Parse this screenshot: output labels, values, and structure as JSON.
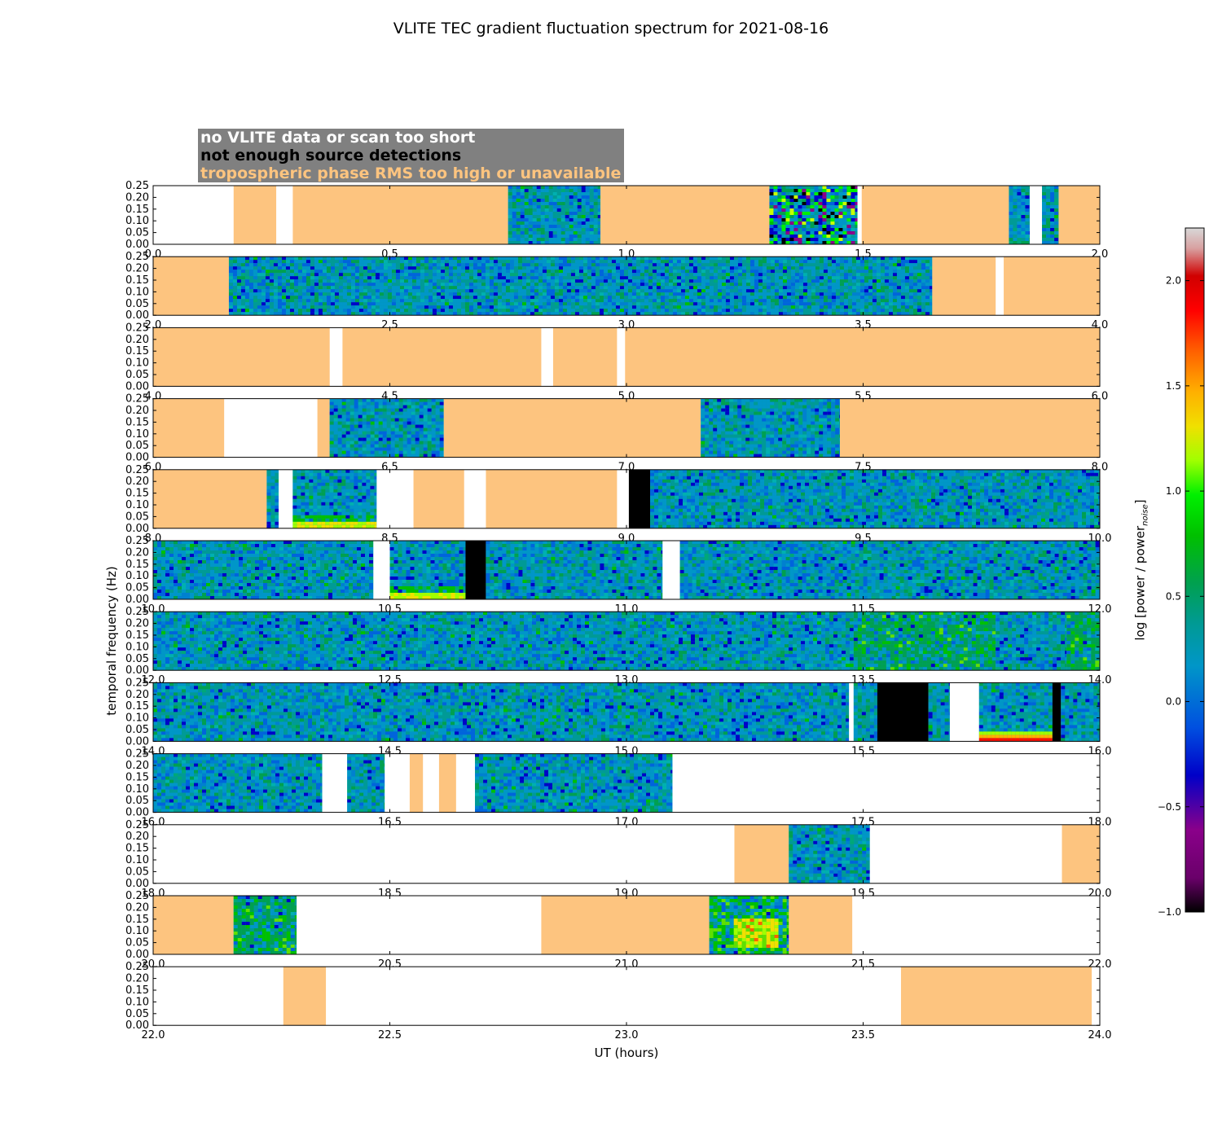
{
  "title": "VLITE TEC gradient fluctuation spectrum for 2021-08-16",
  "legend": {
    "no_data": "no VLITE data or scan too short",
    "no_detections": "not enough source detections",
    "tropo": "tropospheric phase RMS too high or unavailable"
  },
  "colors": {
    "no_data": "#ffffff",
    "no_detections": "#000000",
    "tropo": "#fdc47f"
  },
  "colorbar": {
    "label": "log [power / power",
    "label_sub": "noise",
    "label_end": "]",
    "range": [
      -1.0,
      2.25
    ],
    "ticks": [
      "−1.0",
      "−0.5",
      "0.0",
      "0.5",
      "1.0",
      "1.5",
      "2.0"
    ],
    "tick_values": [
      -1.0,
      -0.5,
      0.0,
      0.5,
      1.0,
      1.5,
      2.0
    ]
  },
  "chart_data": {
    "type": "heatmap",
    "title": "VLITE TEC gradient fluctuation spectrum for 2021-08-16",
    "xlabel": "UT (hours)",
    "ylabel": "temporal frequency (Hz)",
    "ylim": [
      0,
      0.25
    ],
    "yticks": [
      "0.00",
      "0.05",
      "0.10",
      "0.15",
      "0.20",
      "0.25"
    ],
    "panels": [
      {
        "xlim": [
          0,
          2
        ],
        "xticks": [
          "0.0",
          "0.5",
          "1.0",
          "1.5",
          "2.0"
        ],
        "segments": [
          [
            0,
            0.17,
            "none"
          ],
          [
            0.17,
            0.26,
            "tropo"
          ],
          [
            0.26,
            0.295,
            "none"
          ],
          [
            0.295,
            0.75,
            "tropo"
          ],
          [
            0.75,
            0.945,
            "data"
          ],
          [
            0.945,
            1.302,
            "tropo"
          ],
          [
            1.302,
            1.488,
            "data-active"
          ],
          [
            1.488,
            1.497,
            "none"
          ],
          [
            1.497,
            1.808,
            "tropo"
          ],
          [
            1.808,
            1.852,
            "data"
          ],
          [
            1.852,
            1.878,
            "none"
          ],
          [
            1.878,
            1.913,
            "data"
          ],
          [
            1.913,
            2.0,
            "tropo"
          ]
        ]
      },
      {
        "xlim": [
          2,
          4
        ],
        "xticks": [
          "2.0",
          "2.5",
          "3.0",
          "3.5",
          "4.0"
        ],
        "segments": [
          [
            2.0,
            2.16,
            "tropo"
          ],
          [
            2.16,
            3.646,
            "data"
          ],
          [
            3.646,
            3.78,
            "tropo"
          ],
          [
            3.78,
            3.797,
            "none"
          ],
          [
            3.797,
            4.0,
            "tropo"
          ]
        ]
      },
      {
        "xlim": [
          4,
          6
        ],
        "xticks": [
          "4.0",
          "4.5",
          "5.0",
          "5.5",
          "6.0"
        ],
        "segments": [
          [
            4.0,
            4.373,
            "tropo"
          ],
          [
            4.373,
            4.4,
            "none"
          ],
          [
            4.4,
            4.82,
            "tropo"
          ],
          [
            4.82,
            4.845,
            "none"
          ],
          [
            4.845,
            4.98,
            "tropo"
          ],
          [
            4.98,
            4.997,
            "none"
          ],
          [
            4.997,
            6.0,
            "tropo"
          ]
        ]
      },
      {
        "xlim": [
          6,
          8
        ],
        "xticks": [
          "6.0",
          "6.5",
          "7.0",
          "7.5",
          "8.0"
        ],
        "segments": [
          [
            6.0,
            6.15,
            "tropo"
          ],
          [
            6.15,
            6.347,
            "none"
          ],
          [
            6.347,
            6.373,
            "tropo"
          ],
          [
            6.373,
            6.614,
            "data"
          ],
          [
            6.614,
            7.157,
            "tropo"
          ],
          [
            7.157,
            7.451,
            "data"
          ],
          [
            7.451,
            8.0,
            "tropo"
          ]
        ]
      },
      {
        "xlim": [
          8,
          10
        ],
        "xticks": [
          "8.0",
          "8.5",
          "9.0",
          "9.5",
          "10.0"
        ],
        "segments": [
          [
            8.0,
            8.24,
            "tropo"
          ],
          [
            8.24,
            8.265,
            "data"
          ],
          [
            8.265,
            8.295,
            "none"
          ],
          [
            8.295,
            8.472,
            "data-low"
          ],
          [
            8.472,
            8.55,
            "none"
          ],
          [
            8.55,
            8.657,
            "tropo"
          ],
          [
            8.657,
            8.703,
            "none"
          ],
          [
            8.703,
            8.98,
            "tropo"
          ],
          [
            8.98,
            9.005,
            "none"
          ],
          [
            9.005,
            9.05,
            "black"
          ],
          [
            9.05,
            10.0,
            "data"
          ]
        ]
      },
      {
        "xlim": [
          10,
          12
        ],
        "xticks": [
          "10.0",
          "10.5",
          "11.0",
          "11.5",
          "12.0"
        ],
        "segments": [
          [
            10.0,
            10.465,
            "data"
          ],
          [
            10.465,
            10.5,
            "none"
          ],
          [
            10.5,
            10.66,
            "data-low"
          ],
          [
            10.66,
            10.703,
            "black"
          ],
          [
            10.703,
            11.076,
            "data"
          ],
          [
            11.076,
            11.113,
            "none"
          ],
          [
            11.113,
            12.0,
            "data"
          ]
        ]
      },
      {
        "xlim": [
          12,
          14
        ],
        "xticks": [
          "12.0",
          "12.5",
          "13.0",
          "13.5",
          "14.0"
        ],
        "segments": [
          [
            12.0,
            13.48,
            "data"
          ],
          [
            13.48,
            13.78,
            "data-green"
          ],
          [
            13.78,
            13.93,
            "data"
          ],
          [
            13.93,
            14.0,
            "data-green"
          ]
        ]
      },
      {
        "xlim": [
          14,
          16
        ],
        "xticks": [
          "14.0",
          "14.5",
          "15.0",
          "15.5",
          "16.0"
        ],
        "segments": [
          [
            14.0,
            15.47,
            "data"
          ],
          [
            15.47,
            15.48,
            "none"
          ],
          [
            15.48,
            15.53,
            "data"
          ],
          [
            15.53,
            15.638,
            "black"
          ],
          [
            15.638,
            15.683,
            "data"
          ],
          [
            15.683,
            15.745,
            "none"
          ],
          [
            15.745,
            15.9,
            "data-red"
          ],
          [
            15.9,
            15.918,
            "black"
          ],
          [
            15.918,
            16.0,
            "data"
          ]
        ]
      },
      {
        "xlim": [
          16,
          18
        ],
        "xticks": [
          "16.0",
          "16.5",
          "17.0",
          "17.5",
          "18.0"
        ],
        "segments": [
          [
            16.0,
            16.357,
            "data"
          ],
          [
            16.357,
            16.41,
            "none"
          ],
          [
            16.41,
            16.489,
            "data"
          ],
          [
            16.489,
            16.542,
            "none"
          ],
          [
            16.542,
            16.57,
            "tropo"
          ],
          [
            16.57,
            16.604,
            "none"
          ],
          [
            16.604,
            16.64,
            "tropo"
          ],
          [
            16.64,
            16.68,
            "none"
          ],
          [
            16.68,
            17.097,
            "data"
          ],
          [
            17.097,
            18.0,
            "none"
          ]
        ]
      },
      {
        "xlim": [
          18,
          20
        ],
        "xticks": [
          "18.0",
          "18.5",
          "19.0",
          "19.5",
          "20.0"
        ],
        "segments": [
          [
            18.0,
            19.228,
            "none"
          ],
          [
            19.228,
            19.343,
            "tropo"
          ],
          [
            19.343,
            19.514,
            "data"
          ],
          [
            19.514,
            19.92,
            "none"
          ],
          [
            19.92,
            20.0,
            "tropo"
          ]
        ]
      },
      {
        "xlim": [
          20,
          22
        ],
        "xticks": [
          "20.0",
          "20.5",
          "21.0",
          "21.5",
          "22.0"
        ],
        "segments": [
          [
            20.0,
            20.17,
            "tropo"
          ],
          [
            20.17,
            20.303,
            "data-green"
          ],
          [
            20.303,
            20.82,
            "none"
          ],
          [
            20.82,
            21.175,
            "tropo"
          ],
          [
            21.175,
            21.343,
            "data-hot"
          ],
          [
            21.343,
            21.477,
            "tropo"
          ],
          [
            21.477,
            22.0,
            "none"
          ]
        ]
      },
      {
        "xlim": [
          22,
          24
        ],
        "xticks": [
          "22.0",
          "22.5",
          "23.0",
          "23.5",
          "24.0"
        ],
        "segments": [
          [
            22.0,
            22.275,
            "none"
          ],
          [
            22.275,
            22.365,
            "tropo"
          ],
          [
            22.365,
            23.58,
            "none"
          ],
          [
            23.58,
            23.983,
            "tropo"
          ],
          [
            23.983,
            24.0,
            "none"
          ]
        ]
      }
    ]
  }
}
